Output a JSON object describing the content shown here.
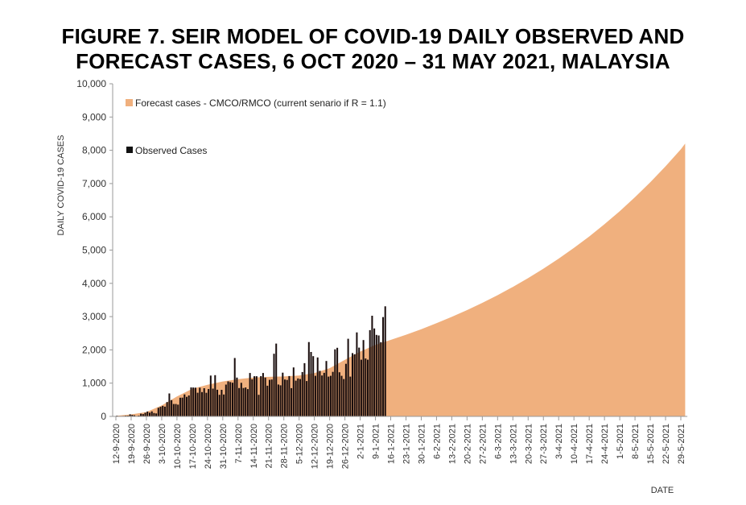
{
  "chart_data": {
    "type": "bar+area",
    "title_line1": "FIGURE 7. SEIR MODEL OF COVID-19 DAILY OBSERVED AND",
    "title_line2": "FORECAST CASES, 6 OCT 2020 – 31 MAY 2021, MALAYSIA",
    "ylabel": "DAILY COVID-19 CASES",
    "xlabel": "DATE",
    "ylim": [
      0,
      10000
    ],
    "yticks": [
      "0",
      "1,000",
      "2,000",
      "3,000",
      "4,000",
      "5,000",
      "6,000",
      "7,000",
      "8,000",
      "9,000",
      "10,000"
    ],
    "grid": false,
    "legend_placement": "top-left",
    "x_start_date": "12-9-2020",
    "x_end_date": "31-5-2021",
    "xticks": [
      "12-9-2020",
      "19-9-2020",
      "26-9-2020",
      "3-10-2020",
      "10-10-2020",
      "17-10-2020",
      "24-10-2020",
      "31-10-2020",
      "7-11-2020",
      "14-11-2020",
      "21-11-2020",
      "28-11-2020",
      "5-12-2020",
      "12-12-2020",
      "19-12-2020",
      "26-12-2020",
      "2-1-2021",
      "9-1-2021",
      "16-1-2021",
      "23-1-2021",
      "30-1-2021",
      "6-2-2021",
      "13-2-2021",
      "20-2-2021",
      "27-2-2021",
      "6-3-2021",
      "13-3-2021",
      "20-3-2021",
      "27-3-2021",
      "3-4-2021",
      "10-4-2021",
      "17-4-2021",
      "24-4-2021",
      "1-5-2021",
      "8-5-2021",
      "15-5-2021",
      "22-5-2021",
      "29-5-2021"
    ],
    "series": [
      {
        "name": "Forecast cases - CMCO/RMCO (current senario if R = 1.1)",
        "type": "area",
        "color": "#F0B07E",
        "weekly_values_at_xticks": [
          20,
          60,
          130,
          330,
          600,
          830,
          950,
          1050,
          1120,
          1170,
          1190,
          1200,
          1230,
          1300,
          1450,
          1700,
          1950,
          2150,
          2300,
          2456,
          2623,
          2802,
          2992,
          3196,
          3413,
          3645,
          3893,
          4158,
          4441,
          4743,
          5065,
          5410,
          5778,
          6170,
          6590,
          7038,
          7517,
          8028
        ],
        "end_value": 8200
      },
      {
        "name": "Observed Cases",
        "type": "bar",
        "color": "#1a0e0e",
        "start_date": "12-9-2020",
        "daily_values": [
          23,
          6,
          13,
          15,
          21,
          21,
          62,
          47,
          34,
          13,
          25,
          82,
          71,
          111,
          147,
          115,
          150,
          101,
          89,
          260,
          287,
          317,
          293,
          432,
          691,
          489,
          373,
          374,
          354,
          561,
          563,
          660,
          589,
          629,
          871,
          869,
          865,
          711,
          862,
          732,
          847,
          710,
          823,
          1228,
          835,
          1240,
          801,
          649,
          799,
          659,
          957,
          1054,
          1032,
          1012,
          1755,
          1168,
          852,
          1009,
          854,
          869,
          822,
          1304,
          1114,
          1208,
          1208,
          650,
          1210,
          1304,
          1166,
          923,
          1099,
          1108,
          1884,
          2188,
          958,
          935,
          1315,
          1109,
          1097,
          1212,
          851,
          1472,
          1075,
          1141,
          1123,
          1335,
          1600,
          1062,
          2234,
          1937,
          1810,
          1220,
          1772,
          1371,
          1229,
          1310,
          1666,
          1196,
          1220,
          1340,
          2018,
          2062,
          1328,
          1221,
          1123,
          1581,
          2335,
          1196,
          1902,
          1870,
          2525,
          2068,
          1704,
          2295,
          1741,
          1704,
          2593,
          3027,
          2643,
          2451,
          2433,
          2232,
          2985,
          3309
        ]
      }
    ]
  }
}
